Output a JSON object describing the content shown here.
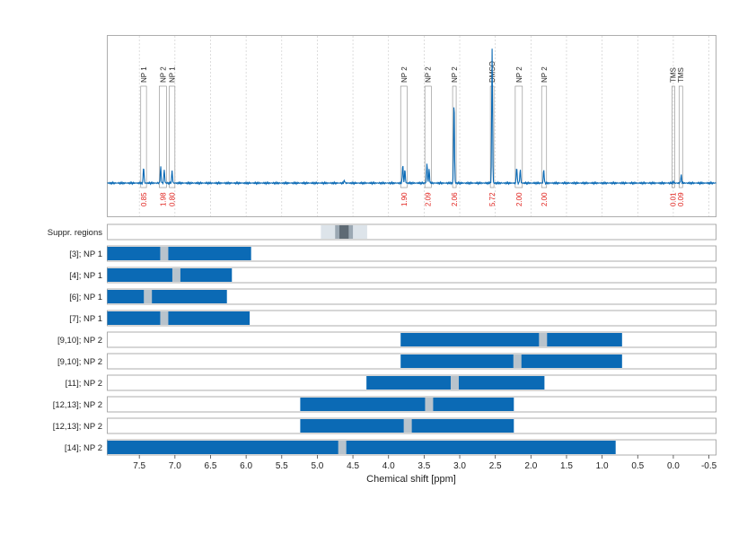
{
  "chart_data": {
    "type": "nmr-spectrum-with-ranges",
    "xlabel": "Chemical shift [ppm]",
    "xlim": [
      7.95,
      -0.6
    ],
    "x_ticks": [
      "7.5",
      "7.0",
      "6.5",
      "6.0",
      "5.5",
      "5.0",
      "4.5",
      "4.0",
      "3.5",
      "3.0",
      "2.5",
      "2.0",
      "1.5",
      "1.0",
      "0.5",
      "0.0",
      "-0.5"
    ],
    "x_tick_values": [
      7.5,
      7.0,
      6.5,
      6.0,
      5.5,
      5.0,
      4.5,
      4.0,
      3.5,
      3.0,
      2.5,
      2.0,
      1.5,
      1.0,
      0.5,
      0.0,
      -0.5
    ],
    "grid": "dotted vertical",
    "colors": {
      "spectrum": "#0b6ab5",
      "range_bar": "#0b6ab5",
      "center_marker": "#b8c3cc",
      "integration_text": "#e0201b",
      "region_box": "#888888"
    },
    "peak_regions": [
      {
        "label": "NP 1",
        "start": 7.48,
        "end": 7.4,
        "integration": "0.85"
      },
      {
        "label": "NP 2",
        "start": 7.22,
        "end": 7.12,
        "integration": "1.98"
      },
      {
        "label": "NP 1",
        "start": 7.08,
        "end": 7.0,
        "integration": "0.80"
      },
      {
        "label": "NP 2",
        "start": 3.83,
        "end": 3.74,
        "integration": "1.90"
      },
      {
        "label": "NP 2",
        "start": 3.49,
        "end": 3.4,
        "integration": "2.09"
      },
      {
        "label": "NP 2",
        "start": 3.1,
        "end": 3.05,
        "integration": "2.06"
      },
      {
        "label": "DMSO",
        "start": 2.57,
        "end": 2.52,
        "integration": "5.72"
      },
      {
        "label": "NP 2",
        "start": 2.22,
        "end": 2.12,
        "integration": "2.00"
      },
      {
        "label": "NP 2",
        "start": 1.85,
        "end": 1.78,
        "integration": "2.00"
      },
      {
        "label": "TMS",
        "start": 0.02,
        "end": -0.01,
        "integration": "0.01"
      },
      {
        "label": "TMS",
        "start": -0.08,
        "end": -0.13,
        "integration": "0.09"
      }
    ],
    "spectrum_peaks": [
      {
        "ppm": 7.44,
        "height": 0.12
      },
      {
        "ppm": 7.2,
        "height": 0.12
      },
      {
        "ppm": 7.15,
        "height": 0.1
      },
      {
        "ppm": 7.04,
        "height": 0.09
      },
      {
        "ppm": 3.8,
        "height": 0.14
      },
      {
        "ppm": 3.77,
        "height": 0.1
      },
      {
        "ppm": 3.46,
        "height": 0.15
      },
      {
        "ppm": 3.43,
        "height": 0.1
      },
      {
        "ppm": 3.08,
        "height": 0.62
      },
      {
        "ppm": 2.545,
        "height": 1.0
      },
      {
        "ppm": 2.2,
        "height": 0.12
      },
      {
        "ppm": 2.15,
        "height": 0.1
      },
      {
        "ppm": 1.82,
        "height": 0.1
      },
      {
        "ppm": 4.62,
        "height": 0.02
      },
      {
        "ppm": 0.0,
        "height": 0.01
      },
      {
        "ppm": -0.11,
        "height": 0.06
      }
    ],
    "suppression_row": {
      "label": "Suppr. regions",
      "start": 4.95,
      "end": 4.3,
      "mid_start": 4.75,
      "mid_end": 4.5,
      "core_start": 4.69,
      "core_end": 4.56
    },
    "range_rows": [
      {
        "label": "[3]; NP 1",
        "start": 7.95,
        "end": 5.93,
        "center": 7.15
      },
      {
        "label": "[4]; NP 1",
        "start": 7.95,
        "end": 6.2,
        "center": 6.98
      },
      {
        "label": "[6]; NP 1",
        "start": 7.95,
        "end": 6.27,
        "center": 7.38
      },
      {
        "label": "[7]; NP 1",
        "start": 7.95,
        "end": 5.95,
        "center": 7.15
      },
      {
        "label": "[9,10]; NP 2",
        "start": 3.83,
        "end": 0.72,
        "center": 1.83
      },
      {
        "label": "[9,10]; NP 2",
        "start": 3.83,
        "end": 0.72,
        "center": 2.19
      },
      {
        "label": "[11]; NP 2",
        "start": 4.31,
        "end": 1.81,
        "center": 3.07
      },
      {
        "label": "[12,13]; NP 2",
        "start": 5.24,
        "end": 2.24,
        "center": 3.43
      },
      {
        "label": "[12,13]; NP 2",
        "start": 5.24,
        "end": 2.24,
        "center": 3.73
      },
      {
        "label": "[14]; NP 2",
        "start": 7.95,
        "end": 0.81,
        "center": 4.65
      }
    ]
  }
}
